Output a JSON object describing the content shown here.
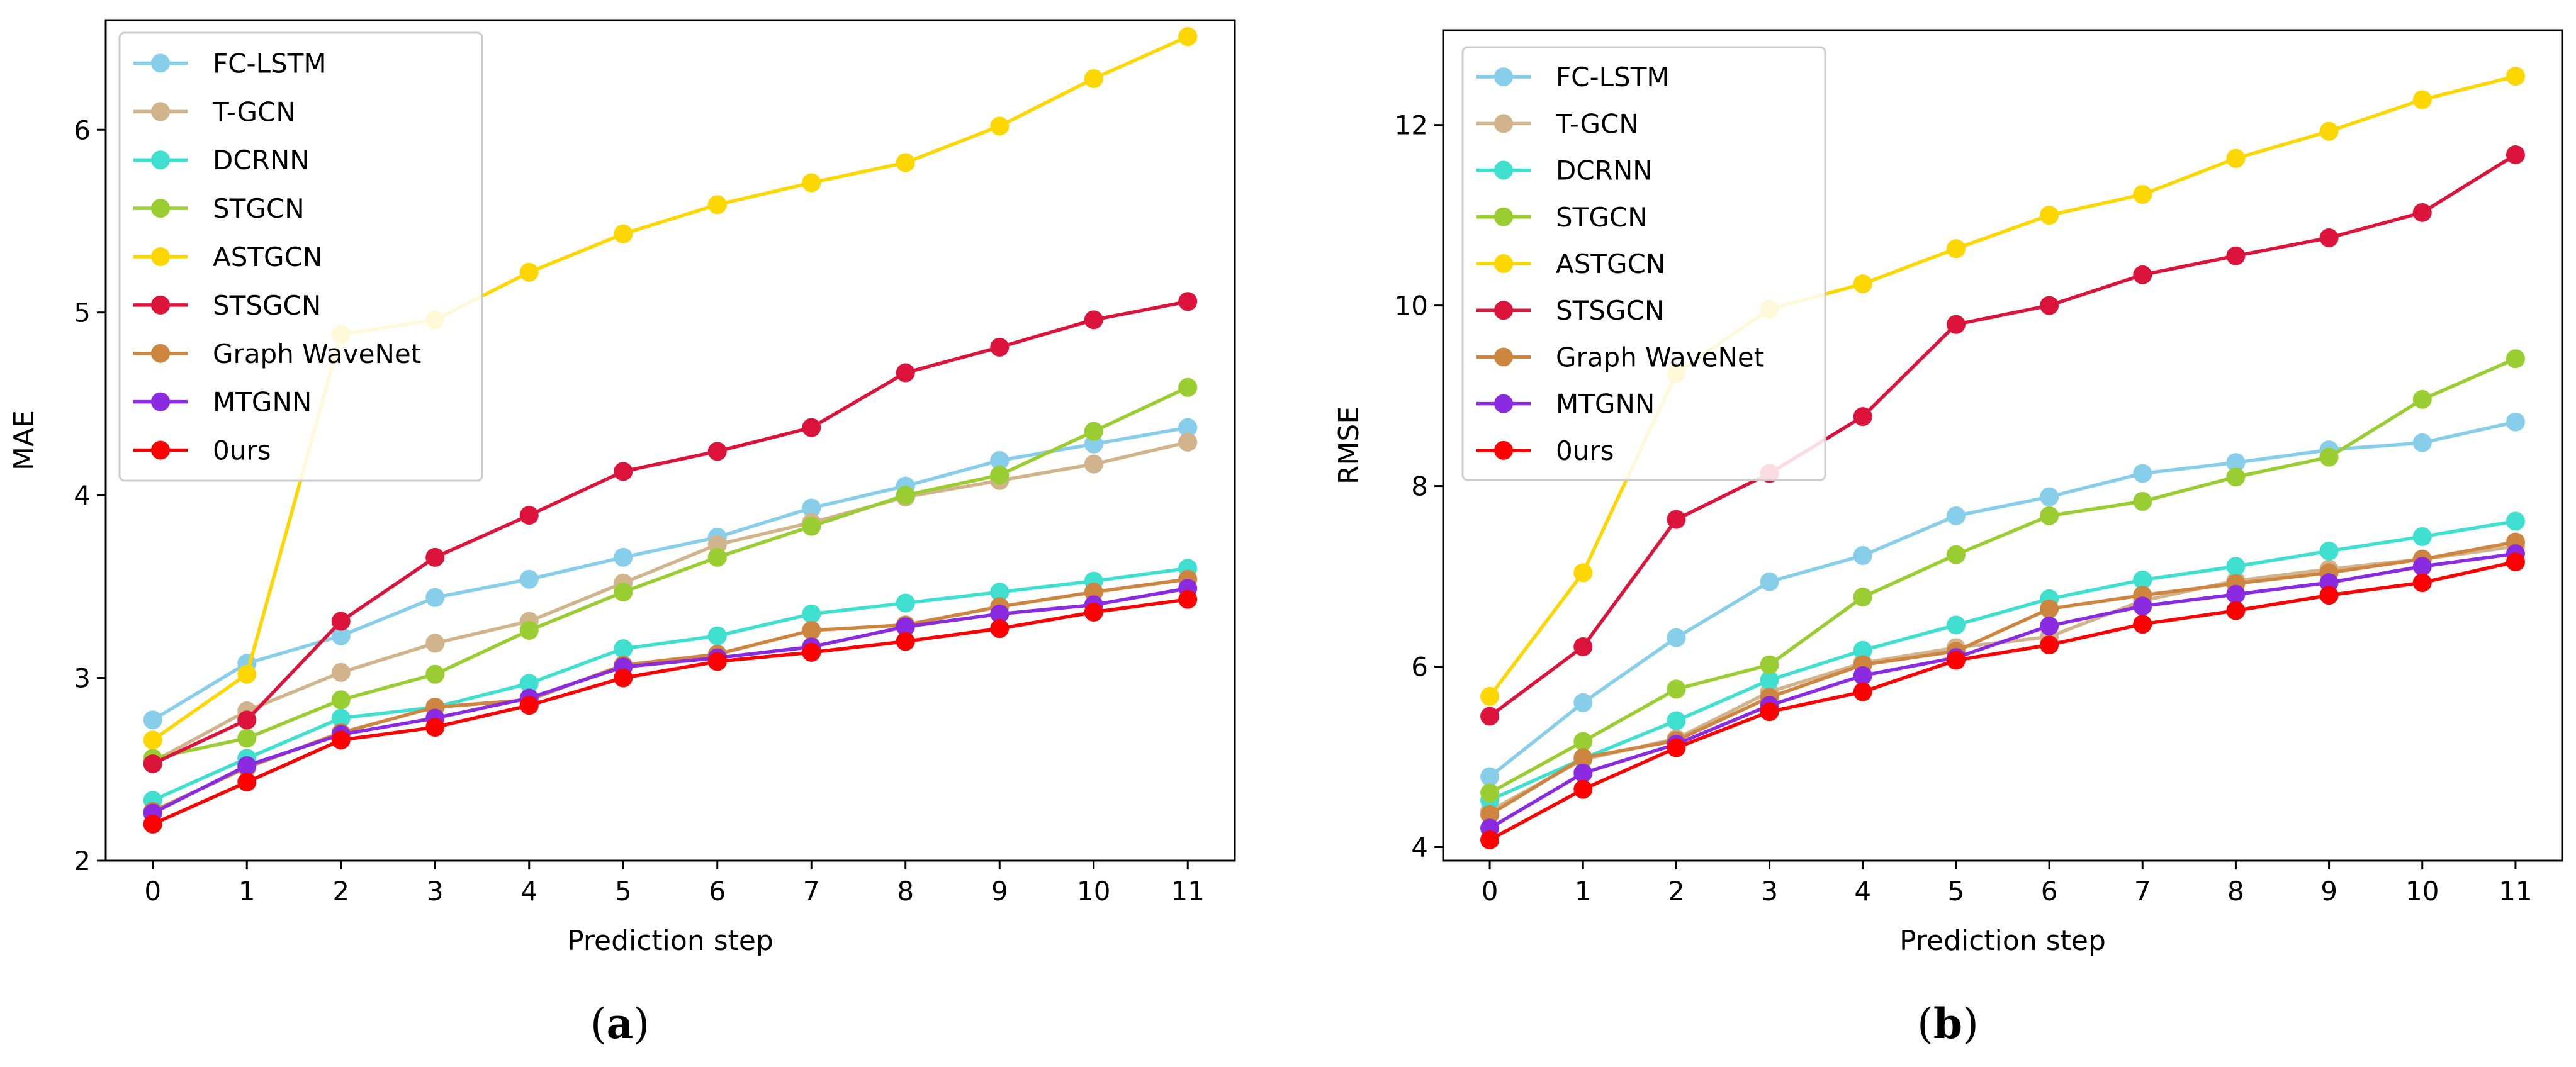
{
  "chart_data": [
    {
      "type": "line",
      "caption_label": "a",
      "title": "",
      "xlabel": "Prediction step",
      "ylabel": "MAE",
      "x": [
        0,
        1,
        2,
        3,
        4,
        5,
        6,
        7,
        8,
        9,
        10,
        11
      ],
      "xlim": [
        -0.5,
        11.5
      ],
      "ylim": [
        2.0,
        6.6
      ],
      "yticks": [
        2,
        3,
        4,
        5,
        6
      ],
      "grid": false,
      "legend": "top-left",
      "series": [
        {
          "name": "FC-LSTM",
          "color": "#87CEEB",
          "values": [
            2.77,
            3.08,
            3.23,
            3.44,
            3.54,
            3.66,
            3.77,
            3.93,
            4.05,
            4.19,
            4.28,
            4.37
          ]
        },
        {
          "name": "T-GCN",
          "color": "#D2B48C",
          "values": [
            2.54,
            2.82,
            3.03,
            3.19,
            3.31,
            3.52,
            3.73,
            3.85,
            3.99,
            4.08,
            4.17,
            4.29
          ]
        },
        {
          "name": "DCRNN",
          "color": "#40E0D0",
          "values": [
            2.33,
            2.56,
            2.78,
            2.84,
            2.97,
            3.16,
            3.23,
            3.35,
            3.41,
            3.47,
            3.53,
            3.6
          ]
        },
        {
          "name": "STGCN",
          "color": "#9ACD32",
          "values": [
            2.56,
            2.67,
            2.88,
            3.02,
            3.26,
            3.47,
            3.66,
            3.83,
            4.0,
            4.11,
            4.35,
            4.59
          ]
        },
        {
          "name": "ASTGCN",
          "color": "#FFD700",
          "values": [
            2.66,
            3.02,
            4.88,
            4.96,
            5.22,
            5.43,
            5.59,
            5.71,
            5.82,
            6.02,
            6.28,
            6.51
          ]
        },
        {
          "name": "STSGCN",
          "color": "#DC143C",
          "values": [
            2.53,
            2.77,
            3.31,
            3.66,
            3.89,
            4.13,
            4.24,
            4.37,
            4.67,
            4.81,
            4.96,
            5.06
          ]
        },
        {
          "name": "Graph WaveNet",
          "color": "#CD853F",
          "values": [
            2.27,
            2.51,
            2.7,
            2.84,
            2.88,
            3.07,
            3.13,
            3.26,
            3.29,
            3.39,
            3.47,
            3.54
          ]
        },
        {
          "name": "MTGNN",
          "color": "#8A2BE2",
          "values": [
            2.26,
            2.52,
            2.69,
            2.78,
            2.89,
            3.06,
            3.11,
            3.17,
            3.28,
            3.35,
            3.4,
            3.49
          ]
        },
        {
          "name": "0urs",
          "color": "#FF0000",
          "values": [
            2.2,
            2.43,
            2.66,
            2.73,
            2.85,
            3.0,
            3.09,
            3.14,
            3.2,
            3.27,
            3.36,
            3.43
          ]
        }
      ]
    },
    {
      "type": "line",
      "caption_label": "b",
      "title": "",
      "xlabel": "Prediction step",
      "ylabel": "RMSE",
      "x": [
        0,
        1,
        2,
        3,
        4,
        5,
        6,
        7,
        8,
        9,
        10,
        11
      ],
      "xlim": [
        -0.5,
        11.5
      ],
      "ylim": [
        3.85,
        13.05
      ],
      "yticks": [
        4,
        6,
        8,
        10,
        12
      ],
      "grid": false,
      "legend": "top-left",
      "series": [
        {
          "name": "FC-LSTM",
          "color": "#87CEEB",
          "values": [
            4.78,
            5.6,
            6.32,
            6.94,
            7.23,
            7.67,
            7.88,
            8.14,
            8.26,
            8.4,
            8.48,
            8.71
          ]
        },
        {
          "name": "T-GCN",
          "color": "#D2B48C",
          "values": [
            4.4,
            4.97,
            5.2,
            5.72,
            6.04,
            6.21,
            6.33,
            6.73,
            6.95,
            7.08,
            7.19,
            7.33
          ]
        },
        {
          "name": "DCRNN",
          "color": "#40E0D0",
          "values": [
            4.52,
            4.98,
            5.4,
            5.85,
            6.18,
            6.46,
            6.75,
            6.96,
            7.11,
            7.28,
            7.44,
            7.61
          ]
        },
        {
          "name": "STGCN",
          "color": "#9ACD32",
          "values": [
            4.6,
            5.17,
            5.75,
            6.02,
            6.77,
            7.24,
            7.67,
            7.83,
            8.1,
            8.32,
            8.96,
            9.41
          ]
        },
        {
          "name": "ASTGCN",
          "color": "#FFD700",
          "values": [
            5.67,
            7.04,
            9.25,
            9.96,
            10.24,
            10.63,
            11.0,
            11.23,
            11.63,
            11.93,
            12.28,
            12.54
          ]
        },
        {
          "name": "STSGCN",
          "color": "#DC143C",
          "values": [
            5.45,
            6.22,
            7.63,
            8.14,
            8.77,
            9.79,
            10.0,
            10.34,
            10.55,
            10.75,
            11.03,
            11.67
          ]
        },
        {
          "name": "Graph WaveNet",
          "color": "#CD853F",
          "values": [
            4.36,
            4.99,
            5.18,
            5.66,
            6.02,
            6.17,
            6.64,
            6.79,
            6.92,
            7.04,
            7.19,
            7.38
          ]
        },
        {
          "name": "MTGNN",
          "color": "#8A2BE2",
          "values": [
            4.21,
            4.82,
            5.14,
            5.57,
            5.9,
            6.1,
            6.45,
            6.67,
            6.8,
            6.93,
            7.11,
            7.25
          ]
        },
        {
          "name": "0urs",
          "color": "#FF0000",
          "values": [
            4.08,
            4.64,
            5.1,
            5.5,
            5.72,
            6.07,
            6.24,
            6.47,
            6.62,
            6.79,
            6.93,
            7.16
          ]
        }
      ]
    }
  ]
}
